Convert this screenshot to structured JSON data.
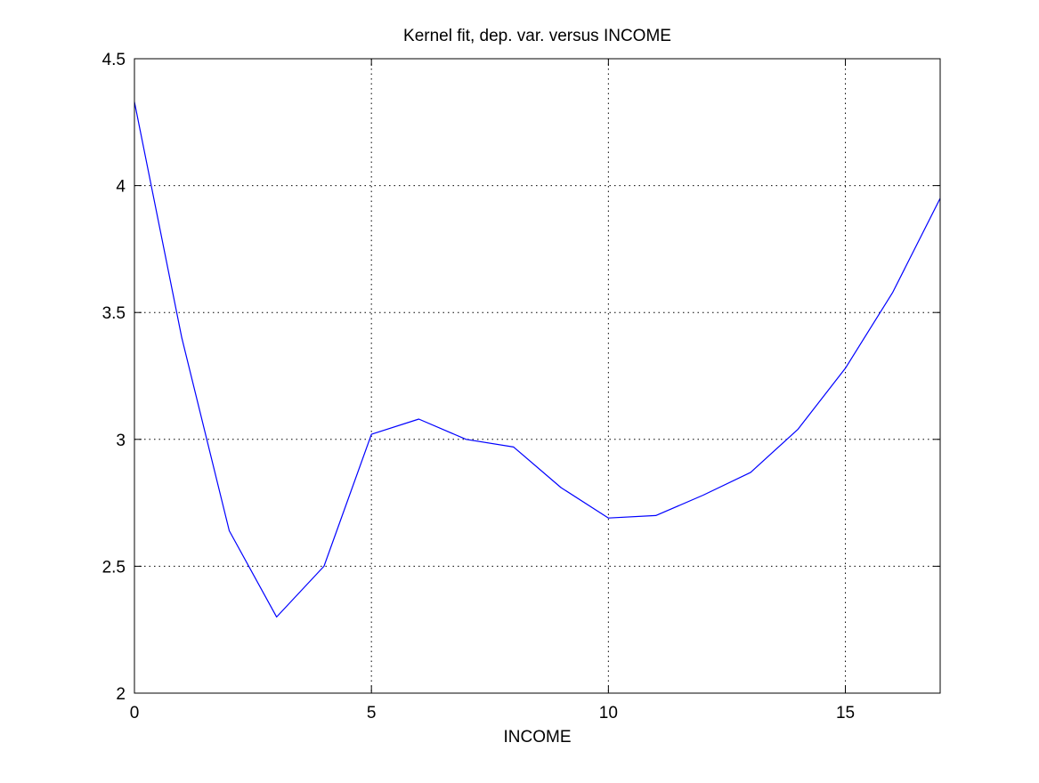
{
  "chart_data": {
    "type": "line",
    "title": "Kernel fit, dep. var. versus INCOME",
    "xlabel": "INCOME",
    "ylabel": "",
    "xlim": [
      0,
      17
    ],
    "ylim": [
      2,
      4.5
    ],
    "xticks": [
      0,
      5,
      10,
      15
    ],
    "yticks": [
      2,
      2.5,
      3,
      3.5,
      4,
      4.5
    ],
    "xtick_labels": [
      "0",
      "5",
      "10",
      "15"
    ],
    "ytick_labels": [
      "2",
      "2.5",
      "3",
      "3.5",
      "4",
      "4.5"
    ],
    "grid": true,
    "grid_style": "dotted",
    "series": [
      {
        "color": "#0000ff",
        "x": [
          0,
          1,
          2,
          3,
          4,
          5,
          6,
          7,
          8,
          9,
          10,
          11,
          12,
          13,
          14,
          15,
          16,
          17
        ],
        "y": [
          4.33,
          3.4,
          2.64,
          2.3,
          2.5,
          3.02,
          3.08,
          3.0,
          2.97,
          2.81,
          2.69,
          2.7,
          2.78,
          2.87,
          3.04,
          3.28,
          3.58,
          3.95
        ]
      }
    ]
  }
}
